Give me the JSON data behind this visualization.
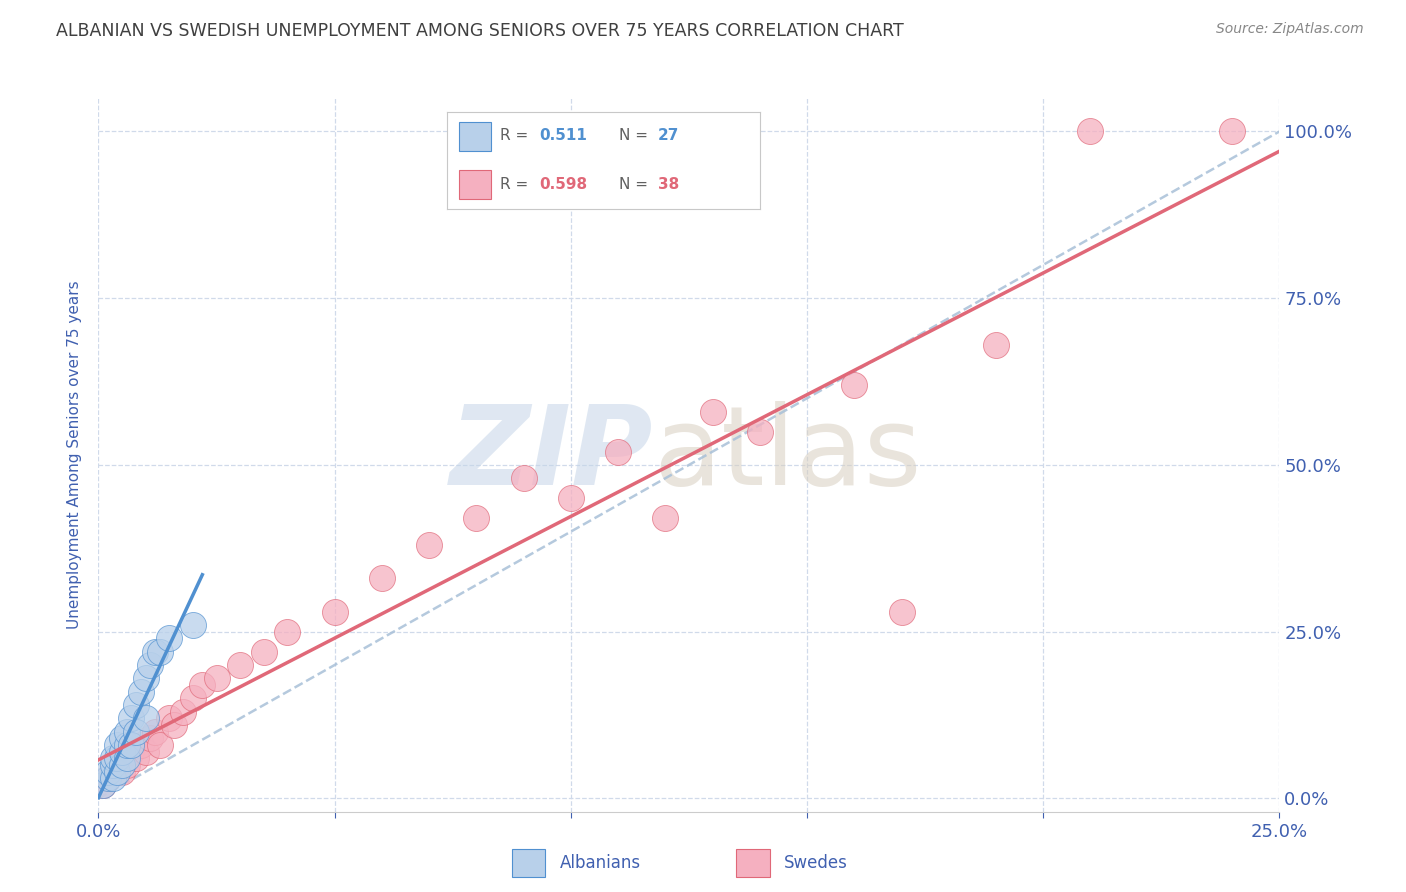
{
  "title": "ALBANIAN VS SWEDISH UNEMPLOYMENT AMONG SENIORS OVER 75 YEARS CORRELATION CHART",
  "source": "Source: ZipAtlas.com",
  "ylabel": "Unemployment Among Seniors over 75 years",
  "xlim": [
    0.0,
    0.25
  ],
  "ylim": [
    -0.02,
    1.05
  ],
  "plot_ylim": [
    0.0,
    1.0
  ],
  "albanian_R": 0.511,
  "albanian_N": 27,
  "swedish_R": 0.598,
  "swedish_N": 38,
  "albanian_color": "#b8d0ea",
  "swedish_color": "#f5b0c0",
  "albanian_line_color": "#5090d0",
  "swedish_line_color": "#e06878",
  "reference_line_color": "#a8c0d8",
  "background_color": "#ffffff",
  "grid_color": "#d0daea",
  "title_color": "#404040",
  "axis_label_color": "#4060b0",
  "albanian_x": [
    0.001,
    0.002,
    0.002,
    0.003,
    0.003,
    0.003,
    0.004,
    0.004,
    0.004,
    0.005,
    0.005,
    0.005,
    0.006,
    0.006,
    0.006,
    0.007,
    0.007,
    0.008,
    0.008,
    0.009,
    0.01,
    0.01,
    0.011,
    0.012,
    0.013,
    0.015,
    0.02
  ],
  "albanian_y": [
    0.02,
    0.03,
    0.04,
    0.03,
    0.05,
    0.06,
    0.04,
    0.06,
    0.08,
    0.05,
    0.07,
    0.09,
    0.06,
    0.08,
    0.1,
    0.08,
    0.12,
    0.1,
    0.14,
    0.16,
    0.12,
    0.18,
    0.2,
    0.22,
    0.22,
    0.24,
    0.26
  ],
  "swedish_x": [
    0.001,
    0.002,
    0.003,
    0.004,
    0.005,
    0.005,
    0.006,
    0.007,
    0.008,
    0.009,
    0.01,
    0.011,
    0.012,
    0.013,
    0.015,
    0.016,
    0.018,
    0.02,
    0.022,
    0.025,
    0.03,
    0.035,
    0.04,
    0.05,
    0.06,
    0.07,
    0.08,
    0.09,
    0.1,
    0.11,
    0.12,
    0.13,
    0.14,
    0.16,
    0.17,
    0.19,
    0.21,
    0.24
  ],
  "swedish_y": [
    0.02,
    0.03,
    0.04,
    0.05,
    0.04,
    0.06,
    0.05,
    0.07,
    0.06,
    0.08,
    0.07,
    0.09,
    0.1,
    0.08,
    0.12,
    0.11,
    0.13,
    0.15,
    0.17,
    0.18,
    0.2,
    0.22,
    0.25,
    0.28,
    0.33,
    0.38,
    0.42,
    0.48,
    0.45,
    0.52,
    0.42,
    0.58,
    0.55,
    0.62,
    0.28,
    0.68,
    1.0,
    1.0
  ]
}
